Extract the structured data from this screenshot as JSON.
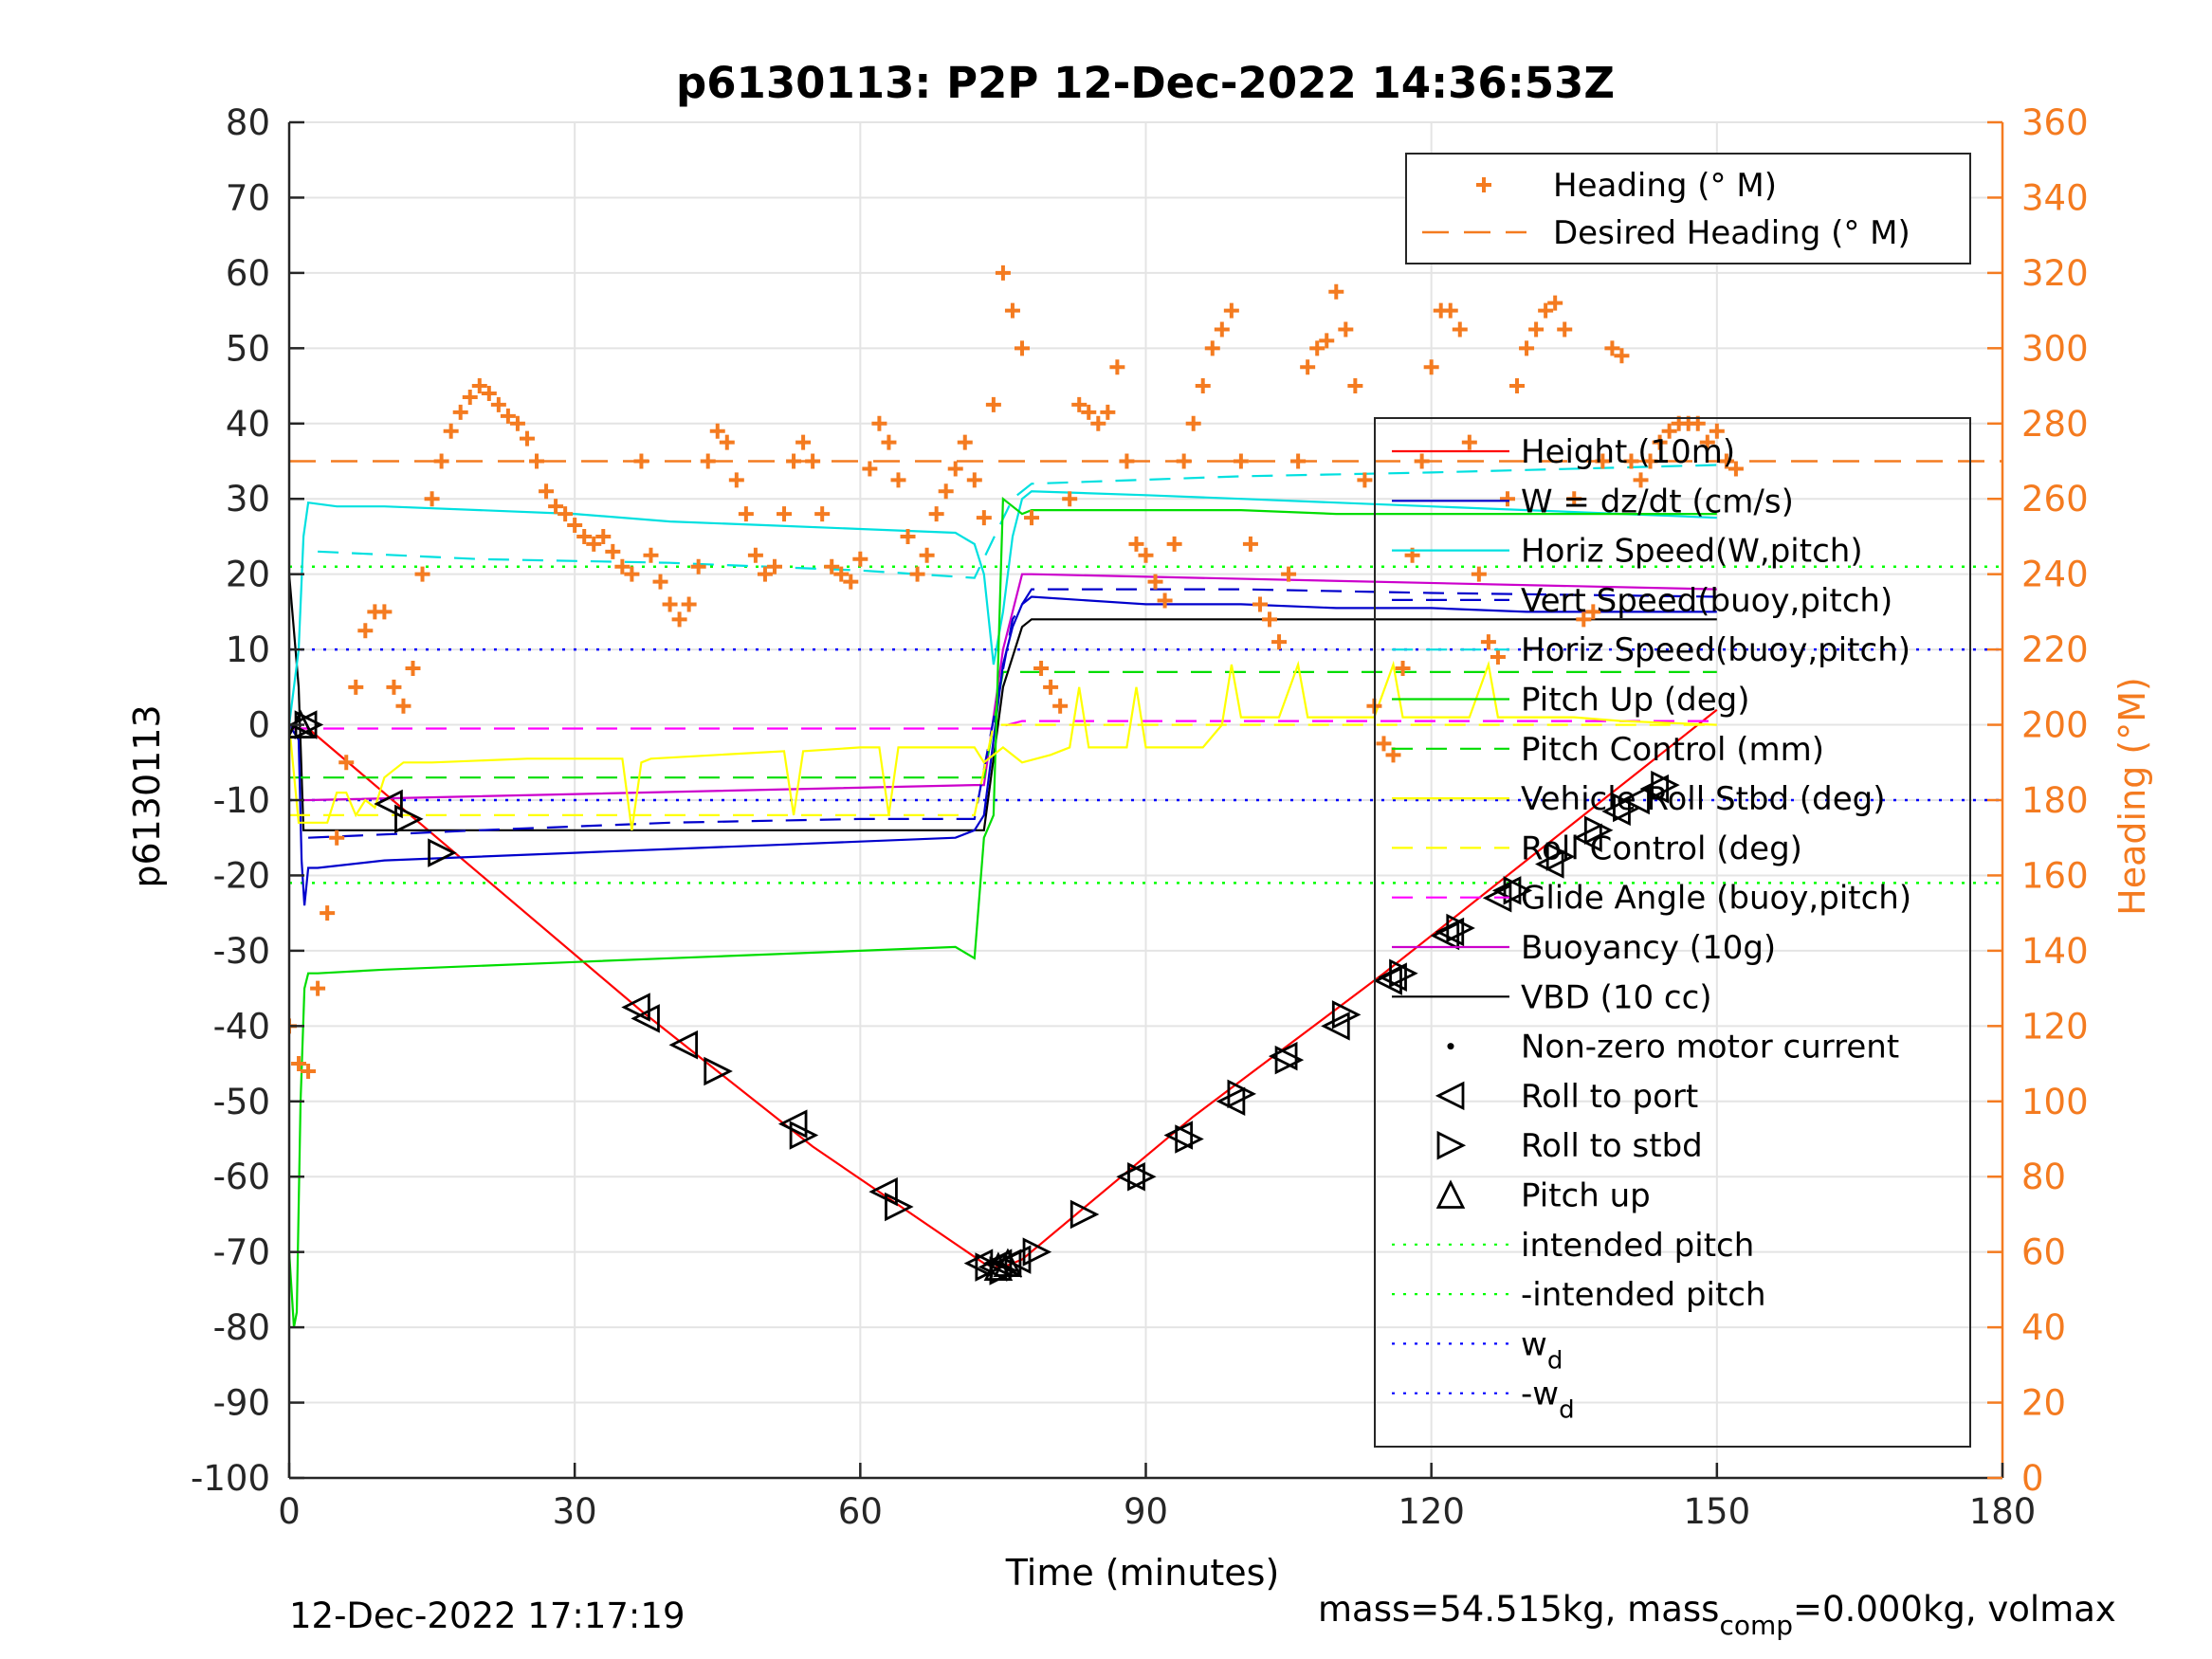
{
  "chart_data": {
    "type": "line",
    "title": "p6130113: P2P 12-Dec-2022 14:36:53Z",
    "xlabel": "Time (minutes)",
    "ylabel": "p6130113",
    "y2label": "Heading (°M)",
    "xlim": [
      0,
      180
    ],
    "ylim": [
      -100,
      80
    ],
    "y2lim": [
      0,
      360
    ],
    "xticks": [
      0,
      30,
      60,
      90,
      120,
      150,
      180
    ],
    "yticks": [
      -100,
      -90,
      -80,
      -70,
      -60,
      -50,
      -40,
      -30,
      -20,
      -10,
      0,
      10,
      20,
      30,
      40,
      50,
      60,
      70,
      80
    ],
    "y2ticks": [
      0,
      20,
      40,
      60,
      80,
      100,
      120,
      140,
      160,
      180,
      200,
      220,
      240,
      260,
      280,
      300,
      320,
      340,
      360
    ],
    "grid": true,
    "footer_left": "12-Dec-2022 17:17:19",
    "footer_right": "mass=54.515kg, mass",
    "footer_right_sub": "comp",
    "footer_right_tail": "=0.000kg, volmax",
    "colors": {
      "heading": "#f47b20",
      "height": "#ff0000",
      "w": "#0000cc",
      "horiz_speed": "#00e0e0",
      "pitch": "#00dd00",
      "roll": "#ffff00",
      "glide": "#ff00ff",
      "vbd": "#000000"
    },
    "legend_heading": [
      "Heading (° M)",
      "Desired Heading (° M)"
    ],
    "legend_main": [
      {
        "label": "Height (10m)",
        "style": "solid",
        "color": "#ff0000"
      },
      {
        "label": "W = dz/dt (cm/s)",
        "style": "solid",
        "color": "#0000cc"
      },
      {
        "label": "Horiz Speed(W,pitch)",
        "style": "solid",
        "color": "#00e0e0"
      },
      {
        "label": "Vert Speed(buoy,pitch)",
        "style": "dash",
        "color": "#0000cc"
      },
      {
        "label": "Horiz Speed(buoy,pitch)",
        "style": "dash",
        "color": "#00e0e0"
      },
      {
        "label": "Pitch Up (deg)",
        "style": "solid",
        "color": "#00dd00"
      },
      {
        "label": "Pitch Control (mm)",
        "style": "dash",
        "color": "#00dd00"
      },
      {
        "label": "Vehicle Roll Stbd (deg)",
        "style": "solid",
        "color": "#ffff00"
      },
      {
        "label": "Roll Control (deg)",
        "style": "dash",
        "color": "#ffff00"
      },
      {
        "label": "Glide Angle (buoy,pitch)",
        "style": "dash",
        "color": "#ff00ff"
      },
      {
        "label": "Buoyancy (10g)",
        "style": "solid",
        "color": "#cc00cc"
      },
      {
        "label": "VBD (10 cc)",
        "style": "solid",
        "color": "#000000"
      },
      {
        "label": "Non-zero motor current",
        "style": "dot-marker",
        "color": "#000000"
      },
      {
        "label": "Roll to port",
        "style": "tri-left",
        "color": "#000000"
      },
      {
        "label": "Roll to stbd",
        "style": "tri-right",
        "color": "#000000"
      },
      {
        "label": "Pitch up",
        "style": "tri-up",
        "color": "#000000"
      },
      {
        "label": "intended pitch",
        "style": "dot",
        "color": "#00ff00"
      },
      {
        "label": "-intended pitch",
        "style": "dot",
        "color": "#00ff00"
      },
      {
        "label": "w",
        "sub": "d",
        "style": "dot",
        "color": "#0000ff"
      },
      {
        "label": "-w",
        "sub": "d",
        "style": "dot",
        "color": "#0000ff"
      }
    ],
    "reference_lines": {
      "intended_pitch": 21,
      "neg_intended_pitch": -21,
      "wd": 10,
      "neg_wd": -10,
      "desired_heading": 270
    },
    "series": [
      {
        "name": "Height (10m)",
        "key": "height",
        "color": "#ff0000",
        "dash": "",
        "x": [
          0,
          1,
          2,
          37,
          55,
          73,
          74,
          75,
          76,
          77,
          95,
          115,
          135,
          150
        ],
        "y": [
          0,
          -0.5,
          -0.5,
          -38,
          -56,
          -71.5,
          -72,
          -72,
          -71.5,
          -71,
          -52,
          -33,
          -13,
          2
        ]
      },
      {
        "name": "Buoyancy (10g)",
        "key": "buoy",
        "color": "#cc00cc",
        "dash": "",
        "x": [
          1.5,
          2,
          72,
          73,
          75,
          77,
          78,
          150
        ],
        "y": [
          -10,
          -10,
          -8,
          -8,
          10,
          20,
          20,
          18
        ]
      },
      {
        "name": "VBD (10 cc)",
        "key": "vbd",
        "color": "#000000",
        "dash": "",
        "x": [
          0,
          1,
          1.5,
          2,
          72,
          73,
          75,
          77,
          78,
          150
        ],
        "y": [
          20,
          5,
          -14,
          -14,
          -14,
          -14,
          5,
          13,
          14,
          14
        ]
      },
      {
        "name": "Glide Angle (buoy,pitch)",
        "key": "glide",
        "color": "#ff00ff",
        "dash": "22,14",
        "x": [
          0,
          72,
          74,
          77,
          150
        ],
        "y": [
          -0.5,
          -0.5,
          -0.5,
          0.5,
          0.5
        ]
      },
      {
        "name": "Pitch Control (mm)",
        "key": "pitchctl",
        "color": "#00dd00",
        "dash": "22,14",
        "x": [
          0,
          73,
          75,
          150
        ],
        "y": [
          -7,
          -7,
          7,
          7
        ]
      },
      {
        "name": "Horiz Speed(buoy,pitch)",
        "key": "hsb",
        "color": "#00e0e0",
        "dash": "22,14",
        "x": [
          3,
          20,
          40,
          60,
          72,
          76,
          78,
          100,
          120,
          150
        ],
        "y": [
          23,
          22,
          21.5,
          20.5,
          19.5,
          30,
          32,
          33,
          33.5,
          34.5
        ]
      },
      {
        "name": "Vert Speed(buoy,pitch)",
        "key": "vsb",
        "color": "#0000cc",
        "dash": "22,14",
        "x": [
          2,
          20,
          40,
          60,
          72,
          76,
          78,
          100,
          120,
          150
        ],
        "y": [
          -15,
          -14,
          -13,
          -12.5,
          -12.5,
          14,
          18,
          18,
          17.5,
          17
        ]
      },
      {
        "name": "W = dz/dt (cm/s)",
        "key": "w",
        "color": "#0000cc",
        "dash": "",
        "x": [
          0,
          1,
          1.3,
          1.6,
          2,
          3,
          10,
          20,
          30,
          40,
          50,
          60,
          70,
          72,
          73,
          74,
          75,
          76,
          77,
          78,
          90,
          100,
          110,
          120,
          130,
          140,
          150
        ],
        "y": [
          0,
          -2,
          -18,
          -24,
          -19,
          -19,
          -18,
          -17.5,
          -17,
          -16.5,
          -16,
          -15.5,
          -15,
          -14,
          -12,
          -2,
          8,
          13,
          16,
          17,
          16,
          16,
          15.5,
          15.5,
          15,
          15,
          15
        ]
      },
      {
        "name": "Horiz Speed(W,pitch)",
        "key": "hsw",
        "color": "#00e0e0",
        "dash": "",
        "x": [
          0,
          1,
          1.5,
          2,
          5,
          10,
          20,
          30,
          40,
          50,
          60,
          70,
          72,
          73,
          74,
          75,
          76,
          77,
          78,
          90,
          100,
          110,
          120,
          130,
          140,
          150
        ],
        "y": [
          0,
          10,
          25,
          29.5,
          29,
          29,
          28.5,
          28,
          27,
          26.5,
          26,
          25.5,
          24,
          20,
          8,
          15,
          25,
          30,
          31,
          30.5,
          30,
          29.5,
          29,
          28.5,
          28,
          27.5
        ]
      },
      {
        "name": "Pitch Up (deg)",
        "key": "pitch",
        "color": "#00dd00",
        "dash": "",
        "x": [
          0,
          0.5,
          0.8,
          1.2,
          1.6,
          2,
          3,
          10,
          20,
          30,
          40,
          50,
          60,
          70,
          72,
          73,
          74,
          75,
          76,
          77,
          78,
          90,
          100,
          110,
          120,
          130,
          140,
          150
        ],
        "y": [
          -70,
          -80,
          -78,
          -50,
          -35,
          -33,
          -33,
          -32.5,
          -32,
          -31.5,
          -31,
          -30.5,
          -30,
          -29.5,
          -31,
          -15,
          -12,
          30,
          29,
          28,
          28.5,
          28.5,
          28.5,
          28,
          28,
          28,
          28,
          28
        ]
      },
      {
        "name": "Vehicle Roll Stbd (deg)",
        "key": "roll",
        "color": "#ffff00",
        "dash": "",
        "x": [
          0,
          1,
          2,
          4,
          5,
          6,
          7,
          8,
          9,
          10,
          11,
          12,
          15,
          25,
          35,
          36,
          37,
          38,
          45,
          52,
          53,
          54,
          60,
          62,
          63,
          64,
          72,
          73,
          75,
          77,
          80,
          82,
          83,
          84,
          88,
          89,
          90,
          96,
          98,
          99,
          100,
          104,
          106,
          107,
          108,
          114,
          116,
          117,
          118,
          124,
          126,
          127,
          128,
          135,
          140,
          150
        ],
        "y": [
          0,
          -13,
          -13,
          -13,
          -9,
          -9,
          -12,
          -10,
          -11,
          -7,
          -6,
          -5,
          -5,
          -4.5,
          -4.5,
          -14,
          -5,
          -4.5,
          -4,
          -3.5,
          -12,
          -3.5,
          -3,
          -3,
          -12,
          -3,
          -3,
          -5,
          -3,
          -5,
          -4,
          -3,
          5,
          -3,
          -3,
          5,
          -3,
          -3,
          0,
          8,
          1,
          1,
          8,
          1,
          1,
          1,
          8,
          1,
          1,
          1,
          8,
          1,
          1,
          1,
          0.5,
          0
        ]
      },
      {
        "name": "Roll Control (deg)",
        "key": "rollctl",
        "color": "#ffff00",
        "dash": "22,14",
        "x": [
          0,
          72,
          74,
          150
        ],
        "y": [
          -12,
          -12,
          0,
          0
        ]
      }
    ],
    "heading": {
      "name": "Heading (° M)",
      "x": [
        0,
        1,
        2,
        3,
        4,
        5,
        6,
        7,
        8,
        9,
        10,
        11,
        12,
        13,
        14,
        15,
        16,
        17,
        18,
        19,
        20,
        21,
        22,
        23,
        24,
        25,
        26,
        27,
        28,
        29,
        30,
        31,
        32,
        33,
        34,
        35,
        36,
        37,
        38,
        39,
        40,
        41,
        42,
        43,
        44,
        45,
        46,
        47,
        48,
        49,
        50,
        51,
        52,
        53,
        54,
        55,
        56,
        57,
        58,
        59,
        60,
        61,
        62,
        63,
        64,
        65,
        66,
        67,
        68,
        69,
        70,
        71,
        72,
        73,
        74,
        75,
        76,
        77,
        78,
        79,
        80,
        81,
        82,
        83,
        84,
        85,
        86,
        87,
        88,
        89,
        90,
        91,
        92,
        93,
        94,
        95,
        96,
        97,
        98,
        99,
        100,
        101,
        102,
        103,
        104,
        105,
        106,
        107,
        108,
        109,
        110,
        111,
        112,
        113,
        114,
        115,
        116,
        117,
        118,
        119,
        120,
        121,
        122,
        123,
        124,
        125,
        126,
        127,
        128,
        129,
        130,
        131,
        132,
        133,
        134,
        135,
        136,
        137,
        138,
        139,
        140,
        141,
        142,
        143,
        144,
        145,
        146,
        147,
        148,
        149,
        150,
        151,
        152
      ],
      "y": [
        120,
        110,
        108,
        130,
        150,
        170,
        190,
        210,
        225,
        230,
        230,
        210,
        205,
        215,
        240,
        260,
        270,
        278,
        283,
        287,
        290,
        288,
        285,
        282,
        280,
        276,
        270,
        262,
        258,
        256,
        253,
        250,
        248,
        250,
        246,
        242,
        240,
        270,
        245,
        238,
        232,
        228,
        232,
        242,
        270,
        278,
        275,
        265,
        256,
        245,
        240,
        242,
        256,
        270,
        275,
        270,
        256,
        242,
        240,
        238,
        244,
        268,
        280,
        275,
        265,
        250,
        240,
        245,
        256,
        262,
        268,
        275,
        265,
        255,
        285,
        320,
        310,
        300,
        255,
        215,
        210,
        205,
        260,
        285,
        283,
        280,
        283,
        295,
        270,
        248,
        245,
        238,
        233,
        248,
        270,
        280,
        290,
        300,
        305,
        310,
        270,
        248,
        232,
        228,
        222,
        240,
        270,
        295,
        300,
        302,
        315,
        305,
        290,
        265,
        205,
        195,
        192,
        215,
        245,
        270,
        295,
        310,
        310,
        305,
        275,
        240,
        222,
        218,
        260,
        290,
        300,
        305,
        310,
        312,
        305,
        260,
        228,
        230,
        270,
        300,
        298,
        270,
        265,
        270,
        275,
        278,
        280,
        280,
        280,
        275,
        278,
        270,
        268
      ]
    },
    "events": {
      "roll_port": [
        [
          1.5,
          0
        ],
        [
          10.5,
          -10.5
        ],
        [
          36.5,
          -37.5
        ],
        [
          37.5,
          -39
        ],
        [
          41.5,
          -42.5
        ],
        [
          53,
          -53
        ],
        [
          62.5,
          -62
        ],
        [
          72.5,
          -71.5
        ],
        [
          74,
          -72
        ],
        [
          74.5,
          -71.5
        ],
        [
          75.5,
          -71.5
        ],
        [
          76.5,
          -71
        ],
        [
          88.5,
          -60
        ],
        [
          93.5,
          -54.5
        ],
        [
          99,
          -50
        ],
        [
          104.5,
          -44
        ],
        [
          110,
          -40
        ],
        [
          115.5,
          -34
        ],
        [
          116,
          -33.5
        ],
        [
          121.5,
          -28
        ],
        [
          122,
          -27.5
        ],
        [
          127,
          -23
        ],
        [
          128,
          -22
        ],
        [
          132.5,
          -18.5
        ],
        [
          136.5,
          -15
        ],
        [
          139.5,
          -11.5
        ],
        [
          141.5,
          -10
        ],
        [
          143.5,
          -8.5
        ]
      ],
      "roll_stbd": [
        [
          2,
          0
        ],
        [
          12.5,
          -12.5
        ],
        [
          16,
          -17
        ],
        [
          45,
          -46
        ],
        [
          54,
          -54.5
        ],
        [
          64,
          -64
        ],
        [
          73.5,
          -72
        ],
        [
          75,
          -72.5
        ],
        [
          78.5,
          -70
        ],
        [
          83.5,
          -65
        ],
        [
          89.5,
          -60
        ],
        [
          94.5,
          -55
        ],
        [
          100,
          -49
        ],
        [
          105,
          -44.5
        ],
        [
          111,
          -38.5
        ],
        [
          117,
          -33
        ],
        [
          123,
          -27
        ],
        [
          129,
          -22
        ],
        [
          133.5,
          -17.5
        ],
        [
          137.5,
          -14
        ],
        [
          140.5,
          -11
        ],
        [
          144.5,
          -8
        ]
      ],
      "pitch_up": [
        [
          1.2,
          0
        ],
        [
          74.5,
          -72
        ],
        [
          75.5,
          -71.5
        ]
      ]
    }
  }
}
